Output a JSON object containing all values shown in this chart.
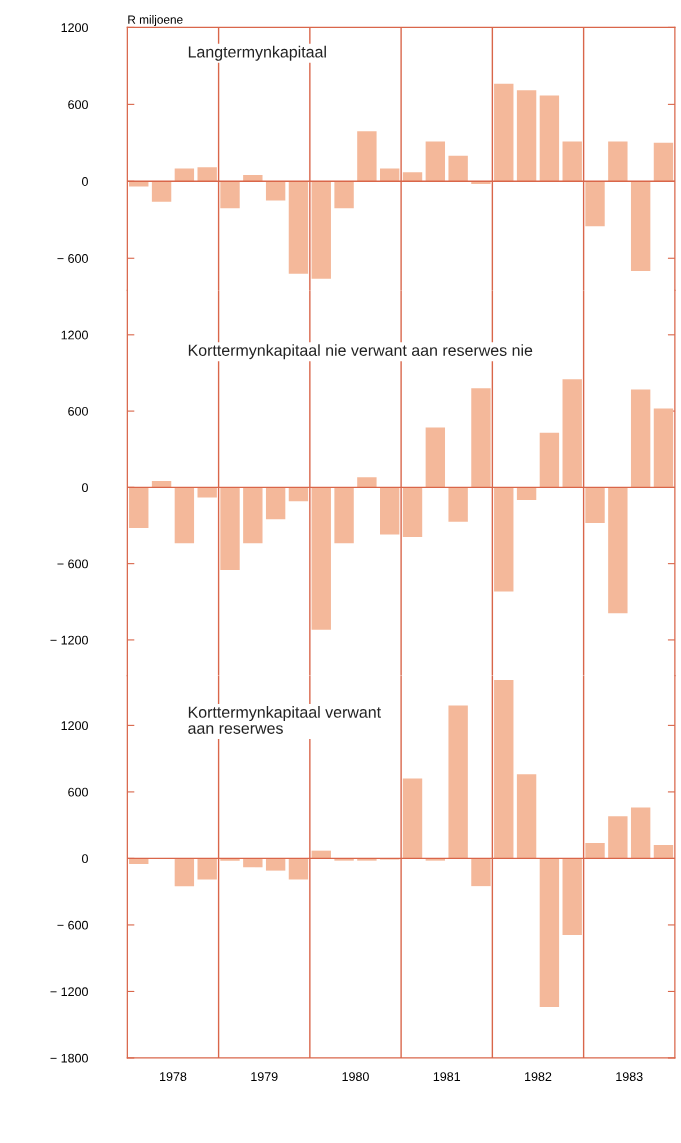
{
  "chart_data": [
    {
      "type": "bar",
      "title": "Langtermynkapitaal",
      "ylabel": "R miljoene",
      "x": [
        1978.125,
        1978.375,
        1978.625,
        1978.875,
        1979.125,
        1979.375,
        1979.625,
        1979.875,
        1980.125,
        1980.375,
        1980.625,
        1980.875,
        1981.125,
        1981.375,
        1981.625,
        1981.875,
        1982.125,
        1982.375,
        1982.625,
        1982.875,
        1983.125,
        1983.375,
        1983.625,
        1983.875
      ],
      "values": [
        -40,
        -160,
        100,
        110,
        -210,
        50,
        -150,
        -720,
        -760,
        -210,
        390,
        100,
        70,
        310,
        200,
        -20,
        760,
        710,
        670,
        310,
        -350,
        310,
        -700,
        300
      ],
      "color": "#f4b89a",
      "xlim": [
        1978,
        1984
      ],
      "ylim": [
        -850,
        1200
      ],
      "yticks": [
        1200,
        600,
        0,
        -600
      ],
      "tick_labels": "y",
      "ref_lines": [
        {
          "axis": "y",
          "value": 0,
          "color": "#d9664a"
        },
        {
          "axis": "x",
          "value": 1979,
          "color": "#d9664a"
        },
        {
          "axis": "x",
          "value": 1980,
          "color": "#d9664a"
        },
        {
          "axis": "x",
          "value": 1981,
          "color": "#d9664a"
        },
        {
          "axis": "x",
          "value": 1982,
          "color": "#d9664a"
        },
        {
          "axis": "x",
          "value": 1983,
          "color": "#d9664a"
        }
      ]
    },
    {
      "type": "bar",
      "title": "Korttermynkapitaal nie verwant aan reserwes nie",
      "x": [
        1978.125,
        1978.375,
        1978.625,
        1978.875,
        1979.125,
        1979.375,
        1979.625,
        1979.875,
        1980.125,
        1980.375,
        1980.625,
        1980.875,
        1981.125,
        1981.375,
        1981.625,
        1981.875,
        1982.125,
        1982.375,
        1982.625,
        1982.875,
        1983.125,
        1983.375,
        1983.625,
        1983.875
      ],
      "values": [
        -320,
        50,
        -440,
        -80,
        -650,
        -440,
        -250,
        -110,
        -1120,
        -440,
        80,
        -370,
        -390,
        470,
        -270,
        780,
        -820,
        -100,
        430,
        850,
        -280,
        -990,
        770,
        620
      ],
      "color": "#f4b89a",
      "xlim": [
        1978,
        1984
      ],
      "ylim": [
        -1480,
        1550
      ],
      "yticks": [
        1200,
        600,
        0,
        -600,
        -1200
      ],
      "tick_labels": "y",
      "ref_lines": [
        {
          "axis": "y",
          "value": 0,
          "color": "#d9664a"
        },
        {
          "axis": "x",
          "value": 1979,
          "color": "#d9664a"
        },
        {
          "axis": "x",
          "value": 1980,
          "color": "#d9664a"
        },
        {
          "axis": "x",
          "value": 1981,
          "color": "#d9664a"
        },
        {
          "axis": "x",
          "value": 1982,
          "color": "#d9664a"
        },
        {
          "axis": "x",
          "value": 1983,
          "color": "#d9664a"
        }
      ]
    },
    {
      "type": "bar",
      "title": "Korttermynkapitaal verwant\naan reserwes",
      "x": [
        1978.125,
        1978.375,
        1978.625,
        1978.875,
        1979.125,
        1979.375,
        1979.625,
        1979.875,
        1980.125,
        1980.375,
        1980.625,
        1980.875,
        1981.125,
        1981.375,
        1981.625,
        1981.875,
        1982.125,
        1982.375,
        1982.625,
        1982.875,
        1983.125,
        1983.375,
        1983.625,
        1983.875
      ],
      "values": [
        -50,
        0,
        -250,
        -190,
        -20,
        -80,
        -110,
        -190,
        70,
        -20,
        -20,
        -10,
        720,
        -20,
        1380,
        -250,
        1610,
        760,
        -1340,
        -690,
        140,
        380,
        460,
        120
      ],
      "color": "#f4b89a",
      "xlim": [
        1978,
        1984
      ],
      "xticks": [
        {
          "value": 1978.5,
          "label": "1978"
        },
        {
          "value": 1979.5,
          "label": "1979"
        },
        {
          "value": 1980.5,
          "label": "1980"
        },
        {
          "value": 1981.5,
          "label": "1981"
        },
        {
          "value": 1982.5,
          "label": "1982"
        },
        {
          "value": 1983.5,
          "label": "1983"
        }
      ],
      "ylim": [
        -1800,
        1650
      ],
      "yticks": [
        1200,
        600,
        0,
        -600,
        -1200,
        -1800
      ],
      "ref_lines": [
        {
          "axis": "y",
          "value": 0,
          "color": "#d9664a"
        },
        {
          "axis": "x",
          "value": 1979,
          "color": "#d9664a"
        },
        {
          "axis": "x",
          "value": 1980,
          "color": "#d9664a"
        },
        {
          "axis": "x",
          "value": 1981,
          "color": "#d9664a"
        },
        {
          "axis": "x",
          "value": 1982,
          "color": "#d9664a"
        },
        {
          "axis": "x",
          "value": 1983,
          "color": "#d9664a"
        }
      ]
    }
  ]
}
